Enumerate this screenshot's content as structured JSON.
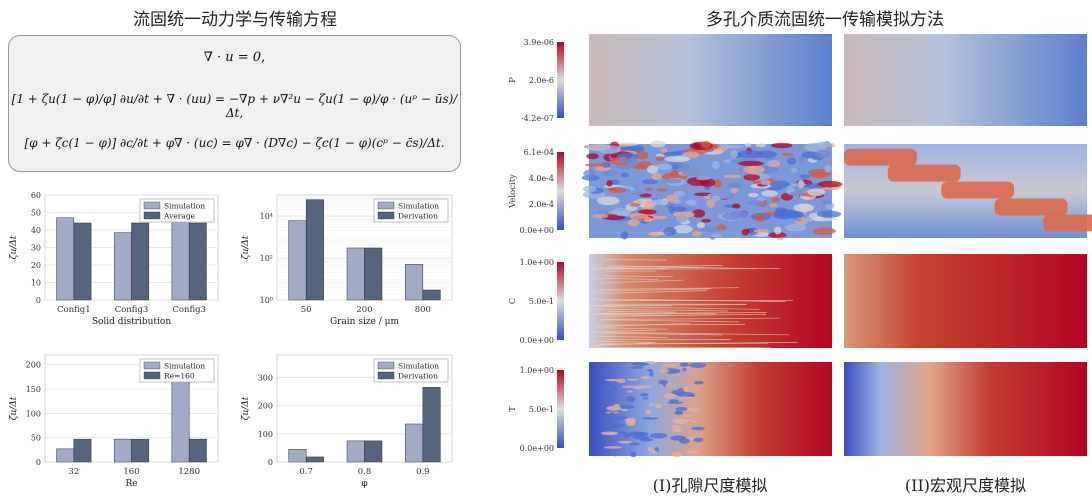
{
  "left_title": "流固统一动力学与传输方程",
  "right_title": "多孔介质流固统一传输模拟方法",
  "equations": [
    "∇ · u = 0,",
    "[1 + ζu(1 − φ)/φ] ∂u/∂t + ∇ · (uu) = −∇p + ν∇²u − ζu(1 − φ)/φ · (uᵖ − ūs)/Δt,",
    "[φ + ζc(1 − φ)] ∂c/∂t + φ∇ · (uc) = φ∇ · (D∇c) − ζc(1 − φ)(cᵖ − c̄s)/Δt."
  ],
  "chart_data": [
    {
      "type": "bar",
      "categories": [
        "Config1",
        "Config3",
        "Config3"
      ],
      "series": [
        {
          "name": "Simulation",
          "values": [
            47,
            38.5,
            47
          ]
        },
        {
          "name": "Average",
          "values": [
            44,
            44,
            44
          ]
        }
      ],
      "xlabel": "Solid distribution",
      "ylabel": "ζu/Δt",
      "ylim": [
        0,
        60
      ],
      "yticks": [
        0,
        10,
        20,
        30,
        40,
        50,
        60
      ],
      "legend": "top-right",
      "grid": true
    },
    {
      "type": "bar",
      "categories": [
        "50",
        "200",
        "800"
      ],
      "series": [
        {
          "name": "Simulation",
          "values": [
            6000,
            300,
            50
          ]
        },
        {
          "name": "Derivation",
          "values": [
            60000,
            300,
            3
          ]
        }
      ],
      "xlabel": "Grain size / μm",
      "ylabel": "ζu/Δt",
      "yscale": "log",
      "ylim": [
        1,
        100000
      ],
      "yticks": [
        1,
        100,
        10000
      ],
      "ytick_labels": [
        "10⁰",
        "10²",
        "10⁴"
      ],
      "legend": "top-right",
      "grid": true
    },
    {
      "type": "bar",
      "categories": [
        "32",
        "160",
        "1280"
      ],
      "series": [
        {
          "name": "Simulation",
          "values": [
            27,
            47,
            170
          ]
        },
        {
          "name": "Re=160",
          "values": [
            47,
            47,
            47
          ]
        }
      ],
      "xlabel": "Re",
      "ylabel": "ζu/Δt",
      "ylim": [
        0,
        220
      ],
      "yticks": [
        0,
        50,
        100,
        150,
        200
      ],
      "legend": "top-right",
      "grid": true
    },
    {
      "type": "bar",
      "categories": [
        "0.7",
        "0.8",
        "0.9"
      ],
      "series": [
        {
          "name": "Simulation",
          "values": [
            45,
            75,
            135
          ]
        },
        {
          "name": "Derivation",
          "values": [
            18,
            75,
            265
          ]
        }
      ],
      "xlabel": "φ",
      "ylabel": "ζu/Δt",
      "ylim": [
        0,
        380
      ],
      "yticks": [
        0,
        100,
        200,
        300
      ],
      "legend": "top-right",
      "grid": true
    }
  ],
  "fields": [
    {
      "name": "P",
      "ticks": [
        "3.9e-06",
        "2.0e-6",
        "-4.2e-07"
      ]
    },
    {
      "name": "Velocity",
      "ticks": [
        "6.1e-04",
        "4.0e-4",
        "2.0e-4",
        "0.0e+00"
      ]
    },
    {
      "name": "C",
      "ticks": [
        "1.0e+00",
        "5.0e-1",
        "0.0e+00"
      ]
    },
    {
      "name": "T",
      "ticks": [
        "1.0e+00",
        "5.0e-1",
        "0.0e+00"
      ]
    }
  ],
  "captions": {
    "pore": "(I)孔隙尺度模拟",
    "macro": "(II)宏观尺度模拟"
  },
  "colors": {
    "sim": "#a3aac6",
    "second": "#56657c",
    "cold": "#3b4cc0",
    "mid": "#dddddd",
    "hot": "#b40426"
  }
}
